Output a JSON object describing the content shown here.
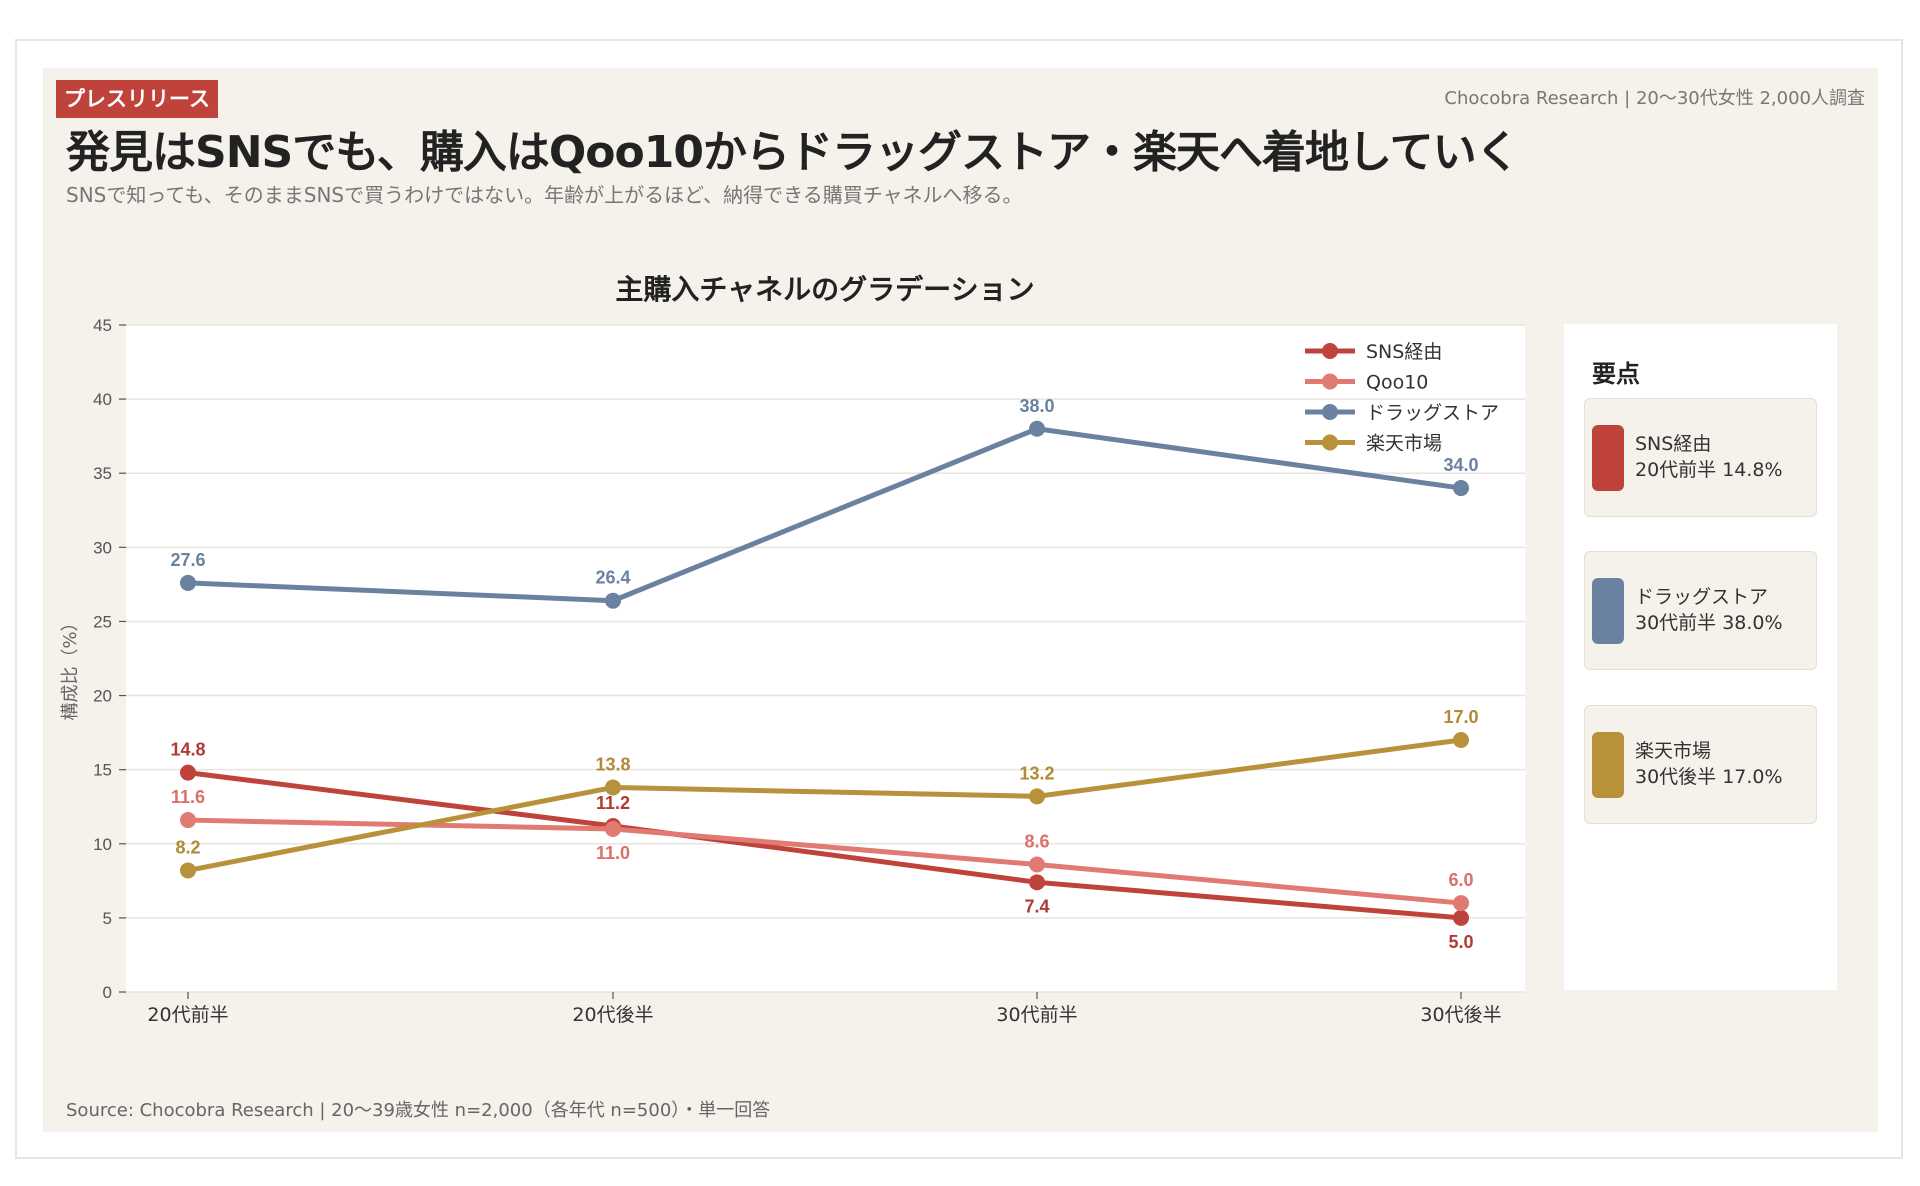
{
  "header": {
    "badge": "プレスリリース",
    "meta": "Chocobra Research | 20〜30代女性 2,000人調査",
    "title": "発見はSNSでも、購入はQoo10からドラッグストア・楽天へ着地していく",
    "subtitle": "SNSで知っても、そのままSNSで買うわけではない。年齢が上がるほど、納得できる購買チャネルへ移る。"
  },
  "chart_data": {
    "type": "line",
    "title": "主購入チャネルのグラデーション",
    "ylabel": "構成比（%）",
    "xlabel": "",
    "categories": [
      "20代前半",
      "20代後半",
      "30代前半",
      "30代後半"
    ],
    "ylim": [
      0,
      45
    ],
    "yticks": [
      0,
      5,
      10,
      15,
      20,
      25,
      30,
      35,
      40,
      45
    ],
    "grid": true,
    "legend_position": "top-right",
    "series": [
      {
        "name": "SNS経由",
        "color": "#c0433b",
        "label_color": "#b03a33",
        "values": [
          14.8,
          11.2,
          7.4,
          5.0
        ]
      },
      {
        "name": "Qoo10",
        "color": "#e07a72",
        "label_color": "#d9706a",
        "values": [
          11.6,
          11.0,
          8.6,
          6.0
        ]
      },
      {
        "name": "ドラッグストア",
        "color": "#6a82a0",
        "label_color": "#6a82a0",
        "values": [
          27.6,
          26.4,
          38.0,
          34.0
        ]
      },
      {
        "name": "楽天市場",
        "color": "#b8923a",
        "label_color": "#b08a35",
        "values": [
          8.2,
          13.8,
          13.2,
          17.0
        ]
      }
    ]
  },
  "panel": {
    "title": "要点",
    "cards": [
      {
        "line1": "SNS経由",
        "line2": "20代前半 14.8%",
        "color": "#c0433b"
      },
      {
        "line1": "ドラッグストア",
        "line2": "30代前半 38.0%",
        "color": "#6a82a0"
      },
      {
        "line1": "楽天市場",
        "line2": "30代後半 17.0%",
        "color": "#b8923a"
      }
    ]
  },
  "footer": {
    "source": "Source: Chocobra Research | 20〜39歳女性 n=2,000（各年代 n=500）・単一回答"
  }
}
